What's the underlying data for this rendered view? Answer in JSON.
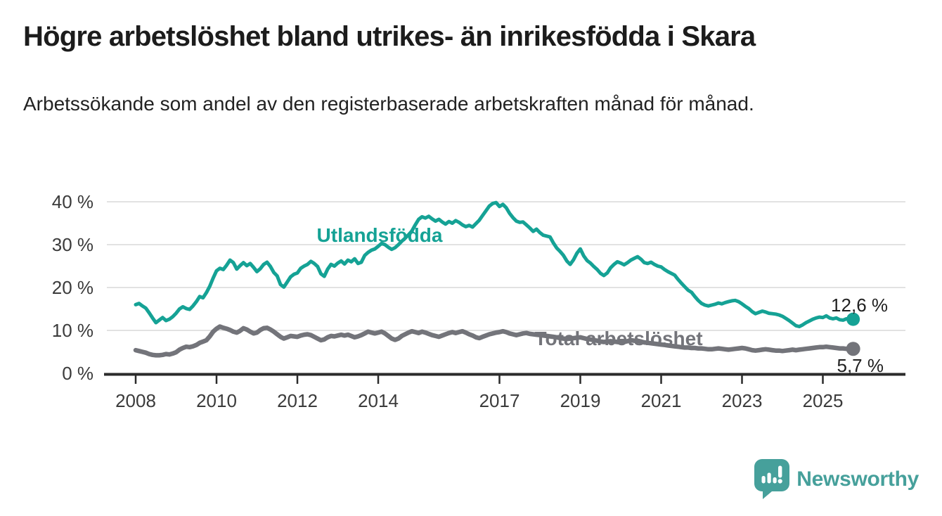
{
  "header": {
    "title": "Högre arbetslöshet bland utrikes- än inrikesfödda i Skara",
    "subtitle": "Arbetssökande som andel av den registerbaserade arbetskraften månad för månad."
  },
  "branding": {
    "logo_text": "Newsworthy",
    "logo_color": "#46a09b",
    "logo_icon": "bar-chart-speech-bubble-icon"
  },
  "chart_data": {
    "type": "line",
    "title": "Högre arbetslöshet bland utrikes- än inrikesfödda i Skara",
    "xlabel": "",
    "ylabel": "",
    "unit": "%",
    "x_start_year": 2008,
    "points_per_year": 12,
    "x_end_label_period": "2025-10",
    "xlim": [
      2007.3,
      2026.2
    ],
    "ylim": [
      0,
      42
    ],
    "grid": true,
    "y_ticks": [
      0,
      10,
      20,
      30,
      40
    ],
    "y_tick_suffix": " %",
    "x_tick_years": [
      2008,
      2010,
      2012,
      2014,
      2017,
      2019,
      2021,
      2023,
      2025
    ],
    "x_tick_labels": [
      "2008",
      "2010",
      "2012",
      "2014",
      "2017",
      "2019",
      "2021",
      "2023",
      "2025"
    ],
    "axis_color": "#2b2b2b",
    "grid_color": "#d8d8d8",
    "tick_label_color": "#3b3b3b",
    "annotation_color": "#1f1f1f",
    "legend_position": "inline-labels",
    "series": [
      {
        "name": "Utlandsfödda",
        "color": "#15a295",
        "end_label": "12,6 %",
        "end_value": 12.6,
        "values": [
          16.0,
          16.3,
          15.7,
          15.2,
          14.1,
          12.9,
          11.8,
          12.4,
          13.0,
          12.3,
          12.6,
          13.2,
          14.0,
          15.0,
          15.5,
          15.1,
          14.9,
          15.7,
          16.7,
          17.9,
          17.6,
          18.8,
          20.3,
          22.2,
          23.9,
          24.5,
          24.2,
          25.2,
          26.4,
          25.8,
          24.3,
          25.1,
          25.8,
          25.1,
          25.6,
          24.7,
          23.7,
          24.4,
          25.4,
          25.9,
          24.9,
          23.5,
          22.7,
          20.7,
          20.1,
          21.3,
          22.5,
          23.1,
          23.4,
          24.5,
          25.0,
          25.4,
          26.1,
          25.6,
          24.9,
          23.2,
          22.6,
          24.3,
          25.4,
          25.0,
          25.7,
          26.2,
          25.5,
          26.4,
          26.0,
          26.7,
          25.6,
          25.9,
          27.5,
          28.2,
          28.7,
          29.0,
          29.6,
          30.3,
          30.0,
          29.4,
          28.9,
          29.3,
          30.0,
          30.8,
          31.5,
          32.3,
          33.2,
          34.6,
          35.9,
          36.5,
          36.2,
          36.6,
          36.0,
          35.5,
          35.9,
          35.3,
          34.8,
          35.4,
          35.0,
          35.6,
          35.2,
          34.6,
          34.2,
          34.5,
          34.1,
          34.9,
          35.7,
          36.8,
          37.9,
          39.0,
          39.6,
          39.8,
          38.9,
          39.4,
          38.6,
          37.3,
          36.3,
          35.5,
          35.2,
          35.3,
          34.6,
          33.9,
          33.1,
          33.6,
          32.8,
          32.2,
          32.0,
          31.8,
          30.4,
          29.2,
          28.4,
          27.5,
          26.2,
          25.4,
          26.5,
          28.0,
          29.0,
          27.4,
          26.3,
          25.7,
          24.9,
          24.2,
          23.3,
          22.8,
          23.4,
          24.6,
          25.4,
          26.0,
          25.7,
          25.3,
          25.8,
          26.4,
          26.8,
          27.2,
          26.6,
          25.8,
          25.6,
          25.9,
          25.4,
          25.0,
          24.8,
          24.2,
          23.7,
          23.3,
          22.9,
          21.9,
          21.0,
          20.2,
          19.4,
          18.9,
          17.9,
          17.0,
          16.3,
          15.9,
          15.7,
          15.9,
          16.1,
          16.4,
          16.2,
          16.5,
          16.7,
          16.9,
          17.0,
          16.7,
          16.2,
          15.6,
          15.1,
          14.4,
          13.9,
          14.2,
          14.5,
          14.3,
          14.0,
          13.9,
          13.8,
          13.6,
          13.3,
          12.8,
          12.3,
          11.7,
          11.1,
          10.9,
          11.3,
          11.8,
          12.2,
          12.6,
          12.9,
          13.1,
          13.0,
          13.4,
          12.9,
          12.7,
          12.9,
          12.5,
          12.4,
          12.7,
          12.5,
          12.6
        ]
      },
      {
        "name": "Total arbetslöshet",
        "color": "#73747a",
        "end_label": "5,7 %",
        "end_value": 5.7,
        "values": [
          5.4,
          5.2,
          5.0,
          4.8,
          4.5,
          4.3,
          4.2,
          4.2,
          4.3,
          4.5,
          4.4,
          4.6,
          4.9,
          5.5,
          5.9,
          6.2,
          6.1,
          6.3,
          6.6,
          7.1,
          7.4,
          7.7,
          8.6,
          9.7,
          10.4,
          10.9,
          10.6,
          10.4,
          10.1,
          9.7,
          9.5,
          9.9,
          10.5,
          10.2,
          9.7,
          9.3,
          9.5,
          10.1,
          10.5,
          10.6,
          10.2,
          9.7,
          9.1,
          8.5,
          8.1,
          8.4,
          8.7,
          8.6,
          8.5,
          8.8,
          9.0,
          9.1,
          8.9,
          8.5,
          8.1,
          7.7,
          7.9,
          8.4,
          8.7,
          8.6,
          8.8,
          9.0,
          8.8,
          9.0,
          8.7,
          8.4,
          8.6,
          8.9,
          9.3,
          9.7,
          9.5,
          9.3,
          9.5,
          9.7,
          9.3,
          8.7,
          8.1,
          7.8,
          8.1,
          8.7,
          9.1,
          9.5,
          9.8,
          9.6,
          9.4,
          9.7,
          9.5,
          9.2,
          8.9,
          8.7,
          8.5,
          8.8,
          9.1,
          9.4,
          9.6,
          9.4,
          9.6,
          9.8,
          9.5,
          9.1,
          8.8,
          8.4,
          8.2,
          8.5,
          8.8,
          9.1,
          9.3,
          9.5,
          9.6,
          9.8,
          9.6,
          9.3,
          9.1,
          8.9,
          9.1,
          9.3,
          9.4,
          9.2,
          9.1,
          9.0,
          8.9,
          8.8,
          8.7,
          8.6,
          8.5,
          8.4,
          8.2,
          8.1,
          8.0,
          8.1,
          8.2,
          8.3,
          8.4,
          8.2,
          8.0,
          7.9,
          7.7,
          7.6,
          7.4,
          7.3,
          7.4,
          7.5,
          7.4,
          7.3,
          7.2,
          7.3,
          7.5,
          7.7,
          7.6,
          7.5,
          7.4,
          7.2,
          7.1,
          7.0,
          6.9,
          6.8,
          6.7,
          6.6,
          6.5,
          6.4,
          6.3,
          6.2,
          6.1,
          6.0,
          6.0,
          5.9,
          5.9,
          5.8,
          5.8,
          5.7,
          5.6,
          5.6,
          5.7,
          5.8,
          5.7,
          5.6,
          5.5,
          5.6,
          5.7,
          5.8,
          5.9,
          5.8,
          5.6,
          5.4,
          5.3,
          5.4,
          5.5,
          5.6,
          5.5,
          5.4,
          5.3,
          5.3,
          5.2,
          5.3,
          5.4,
          5.5,
          5.4,
          5.5,
          5.6,
          5.7,
          5.8,
          5.9,
          6.0,
          6.1,
          6.1,
          6.2,
          6.1,
          6.0,
          5.9,
          5.8,
          5.8,
          5.7,
          5.7,
          5.7
        ]
      }
    ]
  }
}
